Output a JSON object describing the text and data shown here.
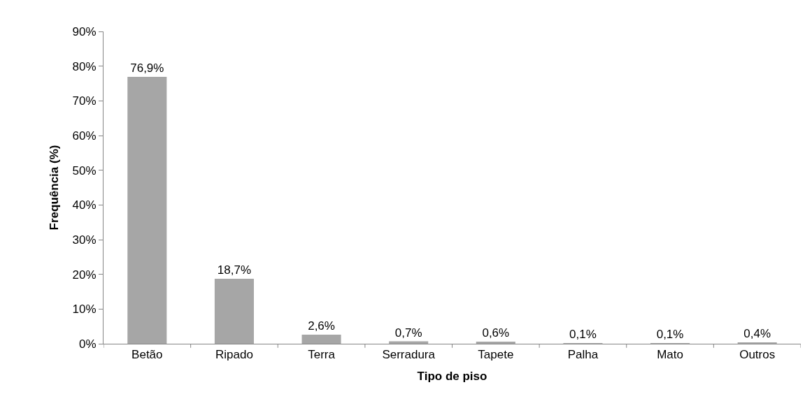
{
  "chart_data": {
    "type": "bar",
    "xlabel": "Tipo de piso",
    "ylabel": "Frequência (%)",
    "categories": [
      "Betão",
      "Ripado",
      "Terra",
      "Serradura",
      "Tapete",
      "Palha",
      "Mato",
      "Outros"
    ],
    "values": [
      76.9,
      18.7,
      2.6,
      0.7,
      0.6,
      0.1,
      0.1,
      0.4
    ],
    "value_labels": [
      "76,9%",
      "18,7%",
      "2,6%",
      "0,7%",
      "0,6%",
      "0,1%",
      "0,1%",
      "0,4%"
    ],
    "color": "#a6a6a6",
    "ylim": [
      0,
      90
    ],
    "yticks": [
      {
        "value": 0,
        "label": "0%"
      },
      {
        "value": 10,
        "label": "10%"
      },
      {
        "value": 20,
        "label": "20%"
      },
      {
        "value": 30,
        "label": "30%"
      },
      {
        "value": 40,
        "label": "40%"
      },
      {
        "value": 50,
        "label": "50%"
      },
      {
        "value": 60,
        "label": "60%"
      },
      {
        "value": 70,
        "label": "70%"
      },
      {
        "value": 80,
        "label": "80%"
      },
      {
        "value": 90,
        "label": "90%"
      }
    ],
    "grid": false,
    "legend": false
  }
}
